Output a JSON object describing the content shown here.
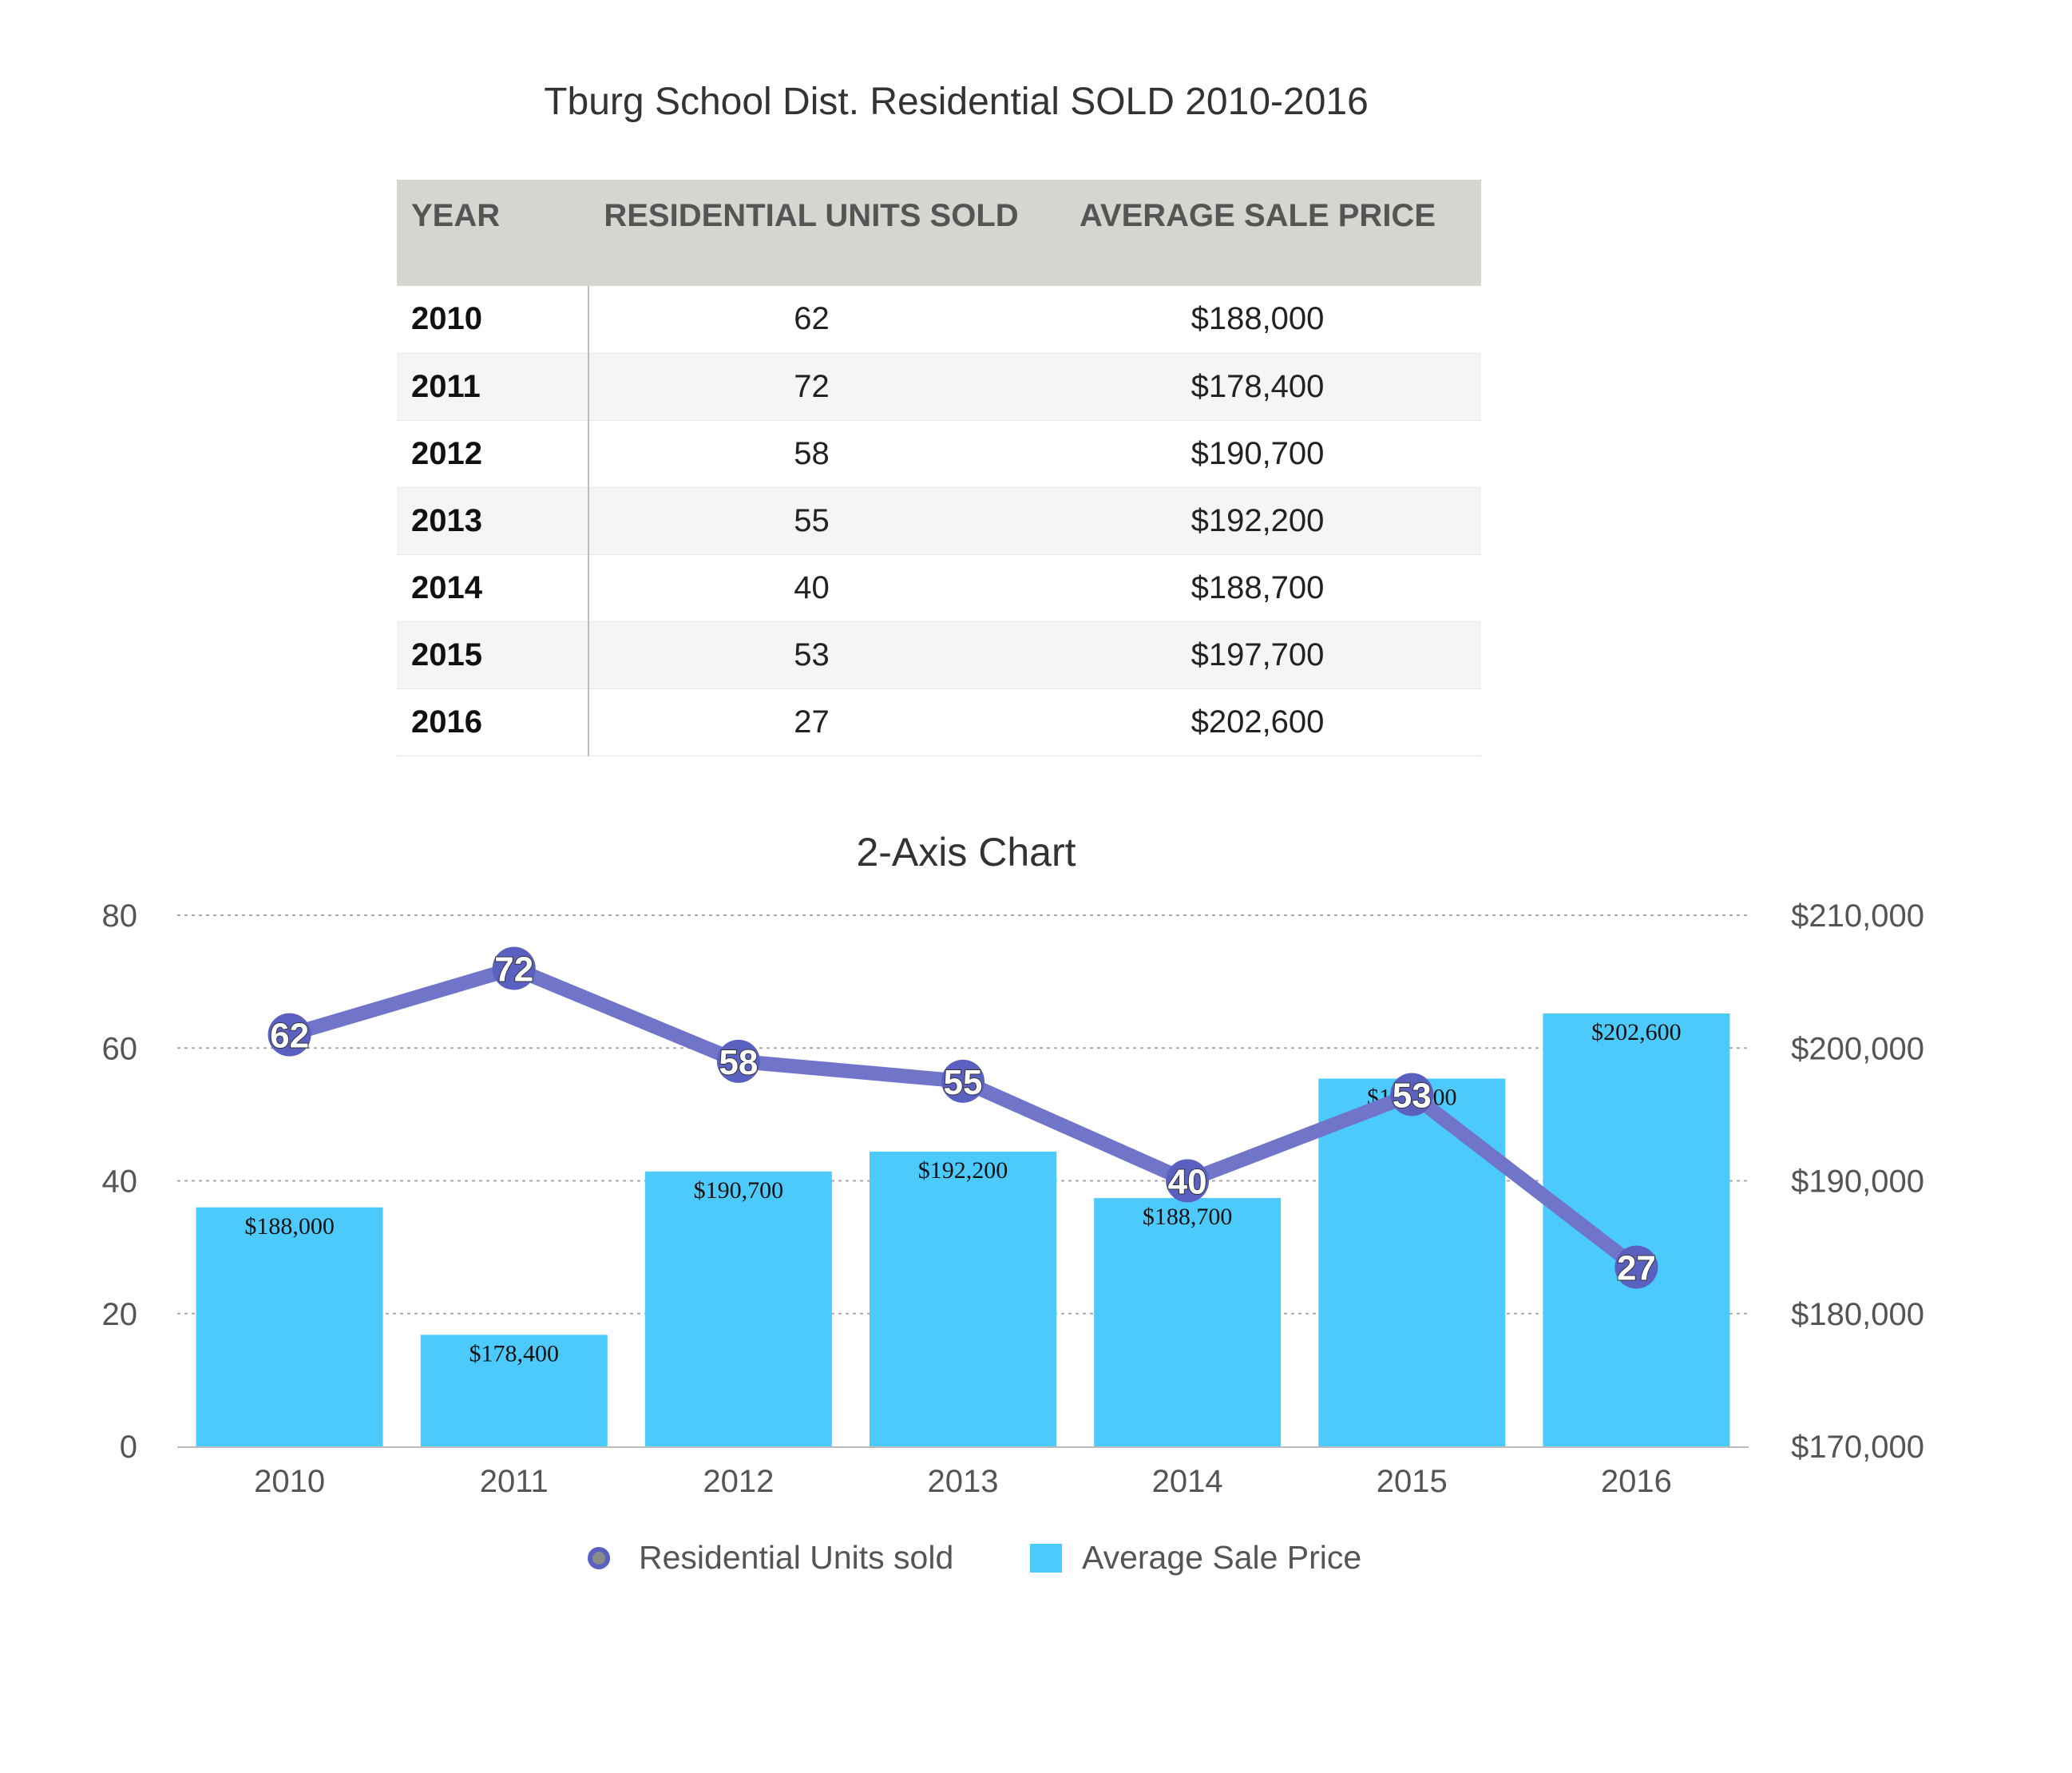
{
  "title": "Tburg School Dist. Residential SOLD  2010-2016",
  "table": {
    "headers": [
      "YEAR",
      "RESIDENTIAL UNITS SOLD",
      "AVERAGE SALE PRICE"
    ],
    "rows": [
      [
        "2010",
        "62",
        "$188,000"
      ],
      [
        "2011",
        "72",
        "$178,400"
      ],
      [
        "2012",
        "58",
        "$190,700"
      ],
      [
        "2013",
        "55",
        "$192,200"
      ],
      [
        "2014",
        "40",
        "$188,700"
      ],
      [
        "2015",
        "53",
        "$197,700"
      ],
      [
        "2016",
        "27",
        "$202,600"
      ]
    ]
  },
  "chart_data": {
    "type": "bar",
    "title": "2-Axis Chart",
    "categories": [
      "2010",
      "2011",
      "2012",
      "2013",
      "2014",
      "2015",
      "2016"
    ],
    "series": [
      {
        "name": "Residential Units sold",
        "type": "line",
        "axis": "left",
        "values": [
          62,
          72,
          58,
          55,
          40,
          53,
          27
        ],
        "labels": [
          "62",
          "72",
          "58",
          "55",
          "40",
          "53",
          "27"
        ]
      },
      {
        "name": "Average Sale Price",
        "type": "bar",
        "axis": "right",
        "values": [
          188000,
          178400,
          190700,
          192200,
          188700,
          197700,
          202600
        ],
        "labels": [
          "$188,000",
          "$178,400",
          "$190,700",
          "$192,200",
          "$188,700",
          "$197,700",
          "$202,600"
        ]
      }
    ],
    "y_left": {
      "ylim": [
        0,
        80
      ],
      "ticks": [
        0,
        20,
        40,
        60,
        80
      ],
      "tick_labels": [
        "0",
        "20",
        "40",
        "60",
        "80"
      ]
    },
    "y_right": {
      "ylim": [
        170000,
        210000
      ],
      "ticks": [
        170000,
        180000,
        190000,
        200000,
        210000
      ],
      "tick_labels": [
        "$170,000",
        "$180,000",
        "$190,000",
        "$200,000",
        "$210,000"
      ]
    },
    "grid": true,
    "legend": "bottom",
    "colors": {
      "line": "#7075c9",
      "marker": "#5a60c0",
      "bar": "#4ccafc",
      "grid": "#aaaaaa"
    }
  }
}
